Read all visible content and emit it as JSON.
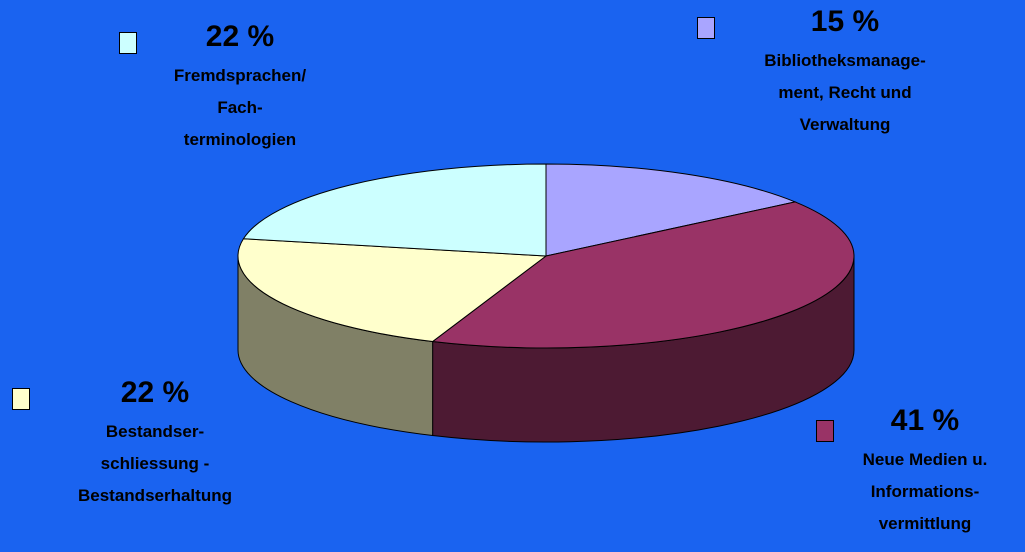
{
  "chart_data": {
    "type": "pie",
    "title": "",
    "slices": [
      {
        "label": "Bibliotheksmanage-\nment, Recht und\nVerwaltung",
        "value": 15,
        "value_text": "15 %",
        "color": "#a9a5ff",
        "side_color": "#8080d0"
      },
      {
        "label": "Neue Medien u.\nInformations-\nvermittlung",
        "value": 41,
        "value_text": "41 %",
        "color": "#993366",
        "side_color": "#4d1a33"
      },
      {
        "label": "Bestandser-\nschliessung -\nBestandserhaltung",
        "value": 22,
        "value_text": "22 %",
        "color": "#ffffcc",
        "side_color": "#808066"
      },
      {
        "label": "Fremdsprachen/\nFach-\nterminologien",
        "value": 22,
        "value_text": "22 %",
        "color": "#ccffff",
        "side_color": "#668080"
      }
    ],
    "legend_placement": "around the pie"
  }
}
